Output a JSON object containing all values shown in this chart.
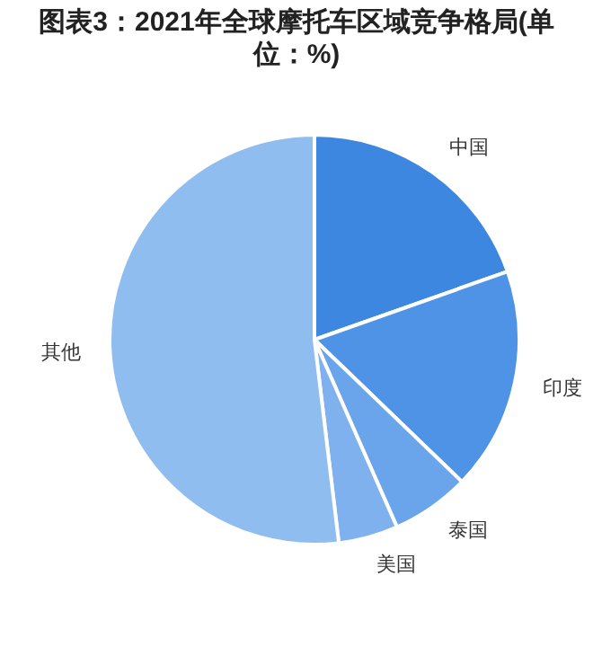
{
  "chart_data": {
    "type": "pie",
    "title": "图表3：2021年全球摩托车区域竞争格局(单位：%)",
    "categories": [
      "中国",
      "印度",
      "泰国",
      "美国",
      "其他"
    ],
    "values": [
      19.6,
      17.6,
      6.2,
      4.7,
      51.9
    ],
    "colors": [
      "#3d87e0",
      "#4f93e6",
      "#6aa4ea",
      "#7eb1ee",
      "#90bdf0"
    ],
    "legend": false
  }
}
